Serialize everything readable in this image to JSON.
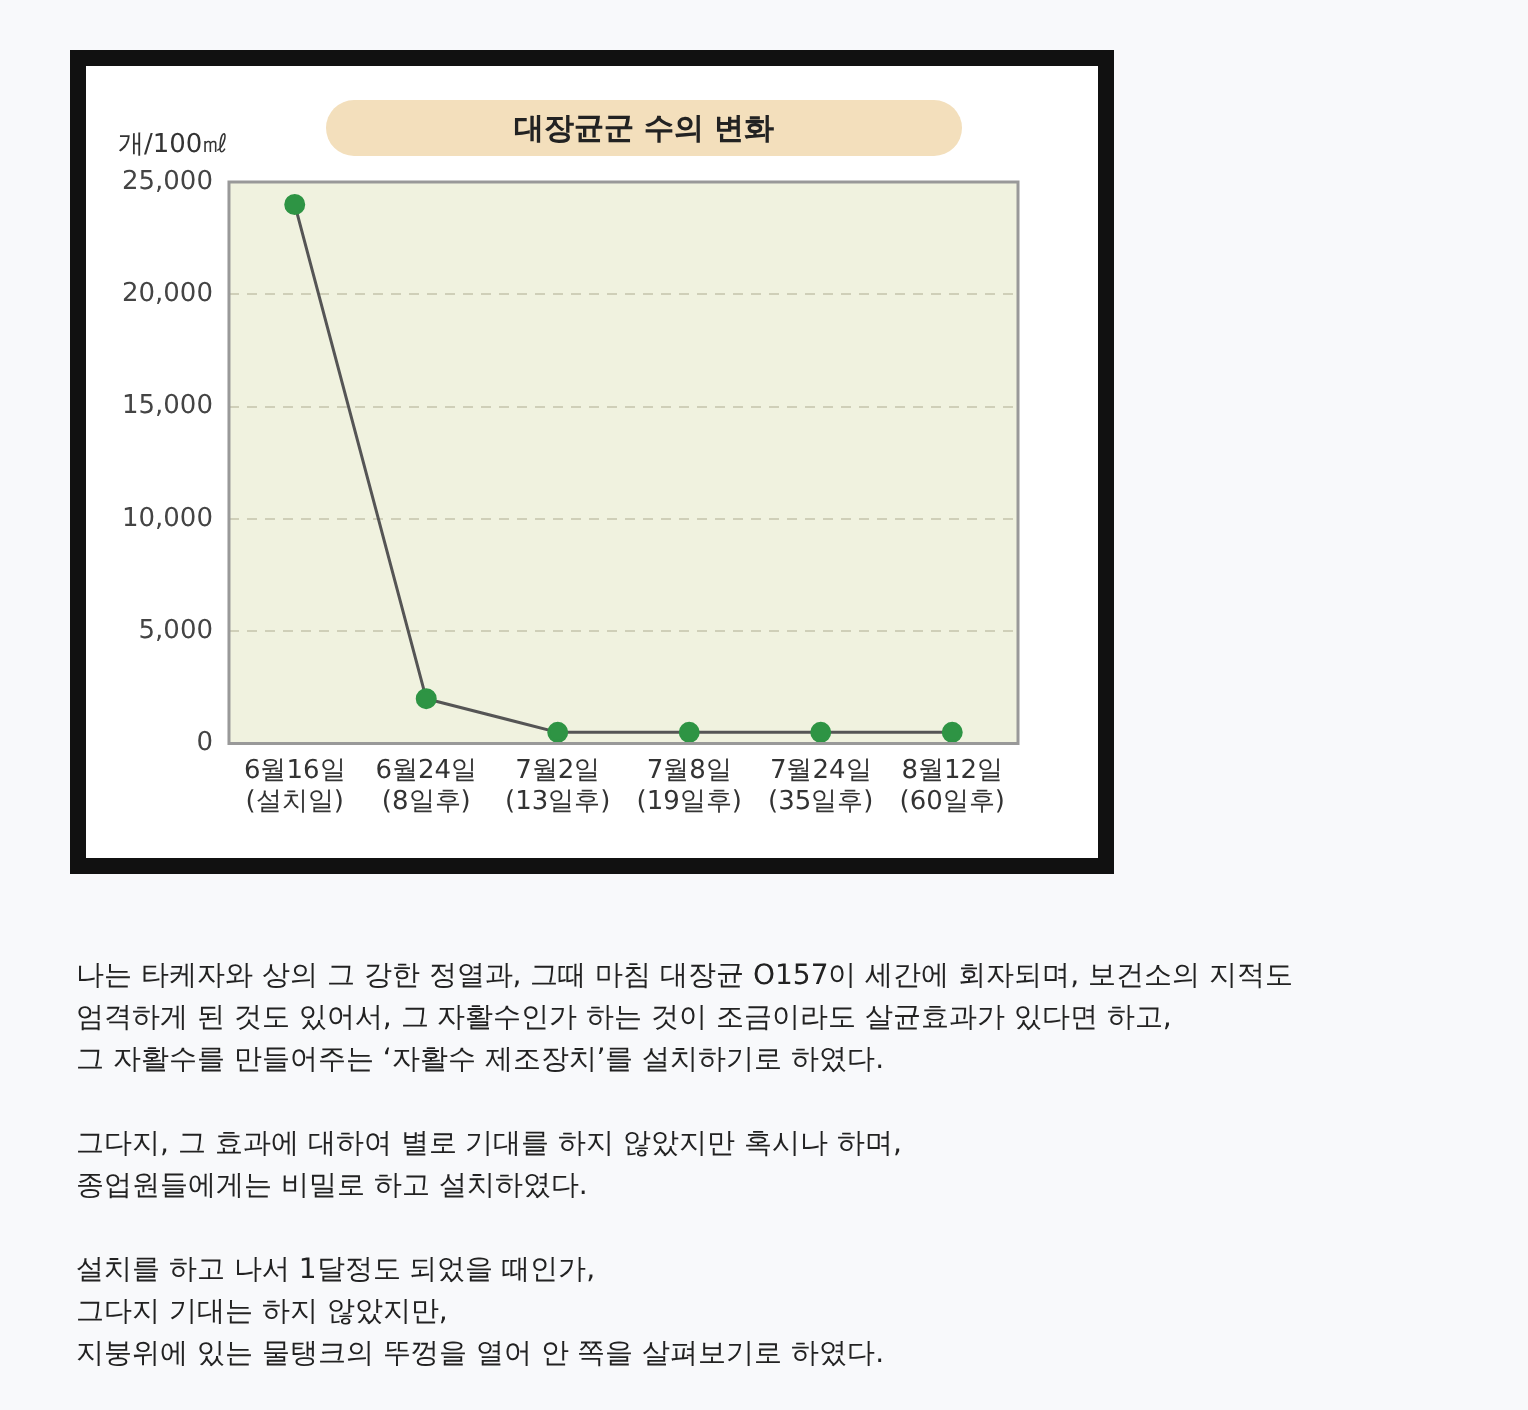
{
  "chart_data": {
    "type": "line",
    "title": "대장균군 수의 변화",
    "ylabel": "개/100㎖",
    "categories": [
      "6월16일\n(설치일)",
      "6월24일\n(8일후)",
      "7월2일\n(13일후)",
      "7월8일\n(19일후)",
      "7월24일\n(35일후)",
      "8월12일\n(60일후)"
    ],
    "series": [
      {
        "color": "#2e9444",
        "values": [
          24000,
          2000,
          500,
          500,
          500,
          500
        ]
      }
    ],
    "ylim": [
      0,
      25000
    ],
    "yticks": [
      0,
      {
        "value": 5000,
        "label": "5,000"
      },
      {
        "value": 10000,
        "label": "10,000"
      },
      {
        "value": 15000,
        "label": "15,000"
      },
      {
        "value": 20000,
        "label": "20,000"
      },
      {
        "value": 25000,
        "label": "25,000"
      }
    ],
    "grid": "y",
    "legend": false,
    "marker": "circle",
    "line_style": "solid",
    "annotations": [
      "나는 타케자와 상의 그 강한 정열과, 그때 마침 대장균 O157이 세간에 회자되며, 보건소의 지적도\n엄격하게 된 것도 있어서, 그 자활수인가 하는 것이 조금이라도 살균효과가 있다면 하고,\n그 자활수를 만들어주는 ‘자활수 제조장치’를 설치하기로 하였다.",
      "그다지, 그 효과에 대하여 별로 기대를 하지 않았지만 혹시나 하며,\n종업원들에게는 비밀로 하고 설치하였다.",
      "설치를 하고 나서 1달정도 되었을 때인가,\n그다지 기대는 하지 않았지만,\n지붕위에 있는 물탱크의 뚜껑을 열어 안 쪽을 살펴보기로 하였다."
    ]
  }
}
